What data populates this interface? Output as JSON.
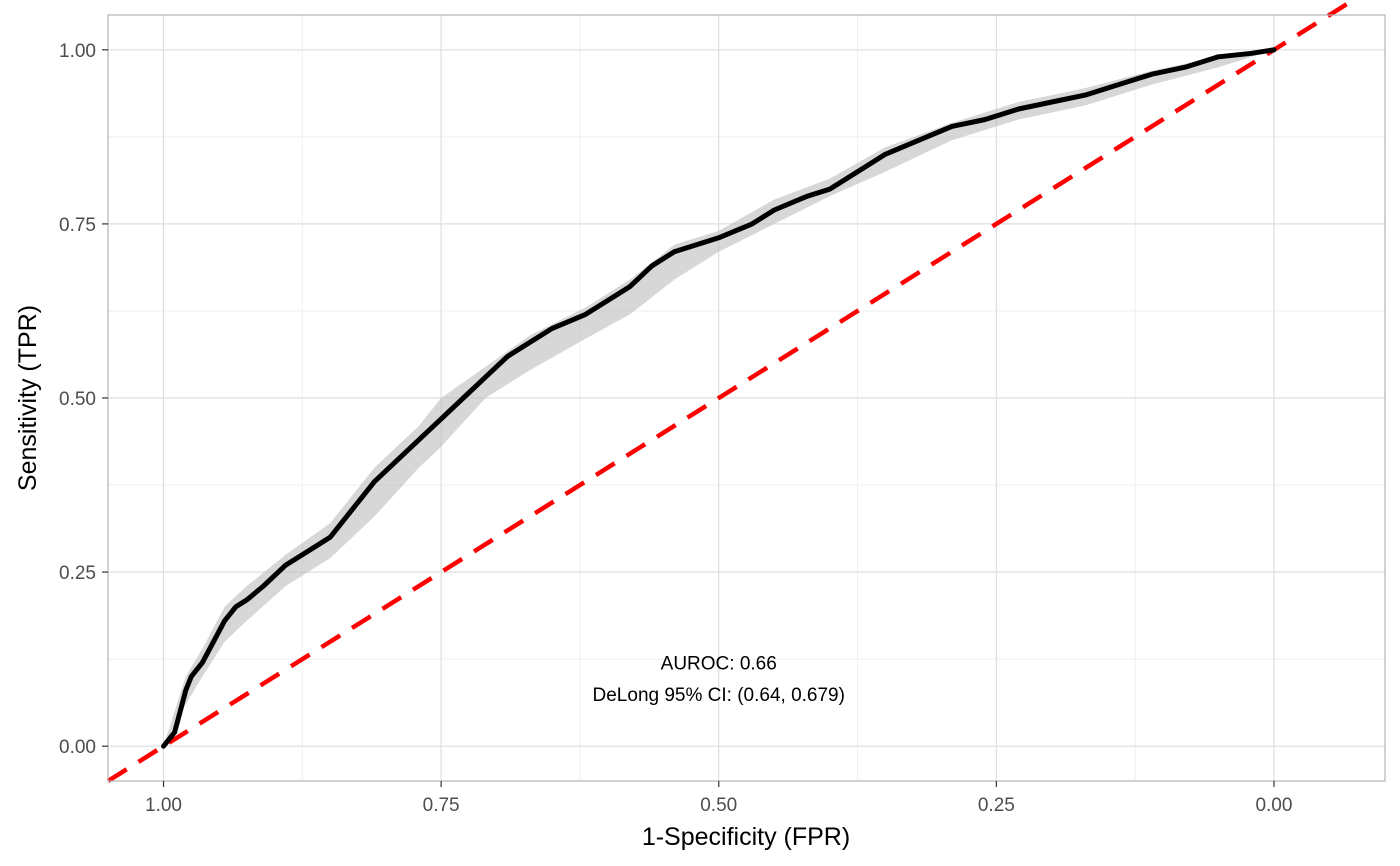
{
  "chart_data": {
    "type": "line",
    "title": "",
    "xlabel": "1-Specificity (FPR)",
    "ylabel": "Sensitivity (TPR)",
    "x_reversed": true,
    "xlim": [
      1.05,
      -0.1
    ],
    "ylim": [
      -0.05,
      1.05
    ],
    "x_ticks": [
      1.0,
      0.75,
      0.5,
      0.25,
      0.0
    ],
    "x_tick_labels": [
      "1.00",
      "0.75",
      "0.50",
      "0.25",
      "0.00"
    ],
    "y_ticks": [
      0.0,
      0.25,
      0.5,
      0.75,
      1.0
    ],
    "y_tick_labels": [
      "0.00",
      "0.25",
      "0.50",
      "0.75",
      "1.00"
    ],
    "grid": true,
    "legend": "none",
    "colors": {
      "roc_line": "#000000",
      "ci_band": "#bfbfbf",
      "reference_line": "#ff0000",
      "panel_border": "#b3b3b3",
      "grid_major": "#dedede",
      "grid_minor": "#efefef"
    },
    "series": [
      {
        "role": "roc_curve",
        "x": [
          1.0,
          0.99,
          0.985,
          0.98,
          0.975,
          0.965,
          0.955,
          0.945,
          0.935,
          0.925,
          0.91,
          0.89,
          0.87,
          0.85,
          0.83,
          0.81,
          0.79,
          0.77,
          0.75,
          0.73,
          0.71,
          0.69,
          0.67,
          0.65,
          0.62,
          0.6,
          0.58,
          0.56,
          0.54,
          0.52,
          0.5,
          0.47,
          0.45,
          0.42,
          0.4,
          0.37,
          0.35,
          0.32,
          0.29,
          0.26,
          0.23,
          0.2,
          0.17,
          0.14,
          0.11,
          0.08,
          0.05,
          0.02,
          0.0
        ],
        "y": [
          0.0,
          0.02,
          0.05,
          0.08,
          0.1,
          0.12,
          0.15,
          0.18,
          0.2,
          0.21,
          0.23,
          0.26,
          0.28,
          0.3,
          0.34,
          0.38,
          0.41,
          0.44,
          0.47,
          0.5,
          0.53,
          0.56,
          0.58,
          0.6,
          0.62,
          0.64,
          0.66,
          0.69,
          0.71,
          0.72,
          0.73,
          0.75,
          0.77,
          0.79,
          0.8,
          0.83,
          0.85,
          0.87,
          0.89,
          0.9,
          0.915,
          0.925,
          0.935,
          0.95,
          0.965,
          0.975,
          0.99,
          0.995,
          1.0
        ]
      },
      {
        "role": "ci_band",
        "x": [
          1.0,
          0.98,
          0.965,
          0.945,
          0.925,
          0.89,
          0.85,
          0.81,
          0.77,
          0.75,
          0.71,
          0.67,
          0.62,
          0.58,
          0.54,
          0.5,
          0.45,
          0.4,
          0.35,
          0.29,
          0.23,
          0.17,
          0.11,
          0.05,
          0.0
        ],
        "upper": [
          0.0,
          0.1,
          0.14,
          0.2,
          0.23,
          0.275,
          0.32,
          0.4,
          0.46,
          0.5,
          0.545,
          0.59,
          0.63,
          0.67,
          0.72,
          0.74,
          0.785,
          0.815,
          0.86,
          0.895,
          0.925,
          0.945,
          0.97,
          0.99,
          1.0
        ],
        "lower": [
          0.0,
          0.06,
          0.1,
          0.15,
          0.18,
          0.23,
          0.27,
          0.33,
          0.4,
          0.43,
          0.5,
          0.54,
          0.585,
          0.62,
          0.67,
          0.71,
          0.75,
          0.79,
          0.825,
          0.87,
          0.9,
          0.92,
          0.95,
          0.975,
          1.0
        ]
      },
      {
        "role": "reference_line",
        "x": [
          1.05,
          -0.1
        ],
        "y": [
          -0.05,
          1.1
        ],
        "style": "dashed"
      }
    ],
    "annotations": [
      {
        "text": "AUROC: 0.66",
        "x": 0.5,
        "y": 0.12
      },
      {
        "text": "DeLong 95% CI: (0.64, 0.679)",
        "x": 0.5,
        "y": 0.075
      }
    ]
  }
}
